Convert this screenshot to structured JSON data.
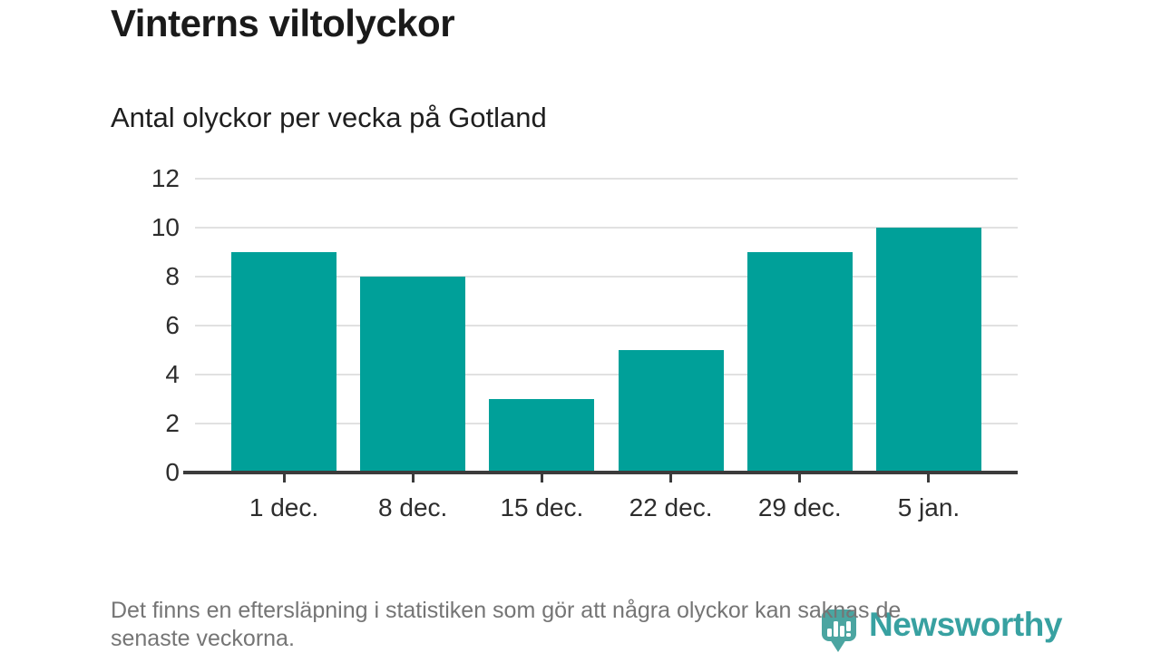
{
  "header": {
    "title": "Vinterns viltolyckor",
    "subtitle": "Antal olyckor per vecka på Gotland"
  },
  "chart_data": {
    "type": "bar",
    "title": "Vinterns viltolyckor",
    "subtitle": "Antal olyckor per vecka på Gotland",
    "categories": [
      "1 dec.",
      "8 dec.",
      "15 dec.",
      "22 dec.",
      "29 dec.",
      "5 jan."
    ],
    "values": [
      9,
      8,
      3,
      5,
      9,
      10
    ],
    "xlabel": "",
    "ylabel": "",
    "ylim": [
      0,
      12
    ],
    "yticks": [
      0,
      2,
      4,
      6,
      8,
      10,
      12
    ],
    "grid": "horizontal",
    "legend": "none",
    "bar_color": "#00a099",
    "gridline_color": "#e1e1e1",
    "axis_color": "#3b3b3b",
    "tick_label_color": "#2d2d2d"
  },
  "footer": {
    "note_line1": "Det finns en eftersläpning i statistiken som gör att några olyckor kan saknas de",
    "note_line2": "senaste veckorna.",
    "brand": "Newsworthy",
    "brand_color": "#38a1a1",
    "note_color": "#757575"
  }
}
